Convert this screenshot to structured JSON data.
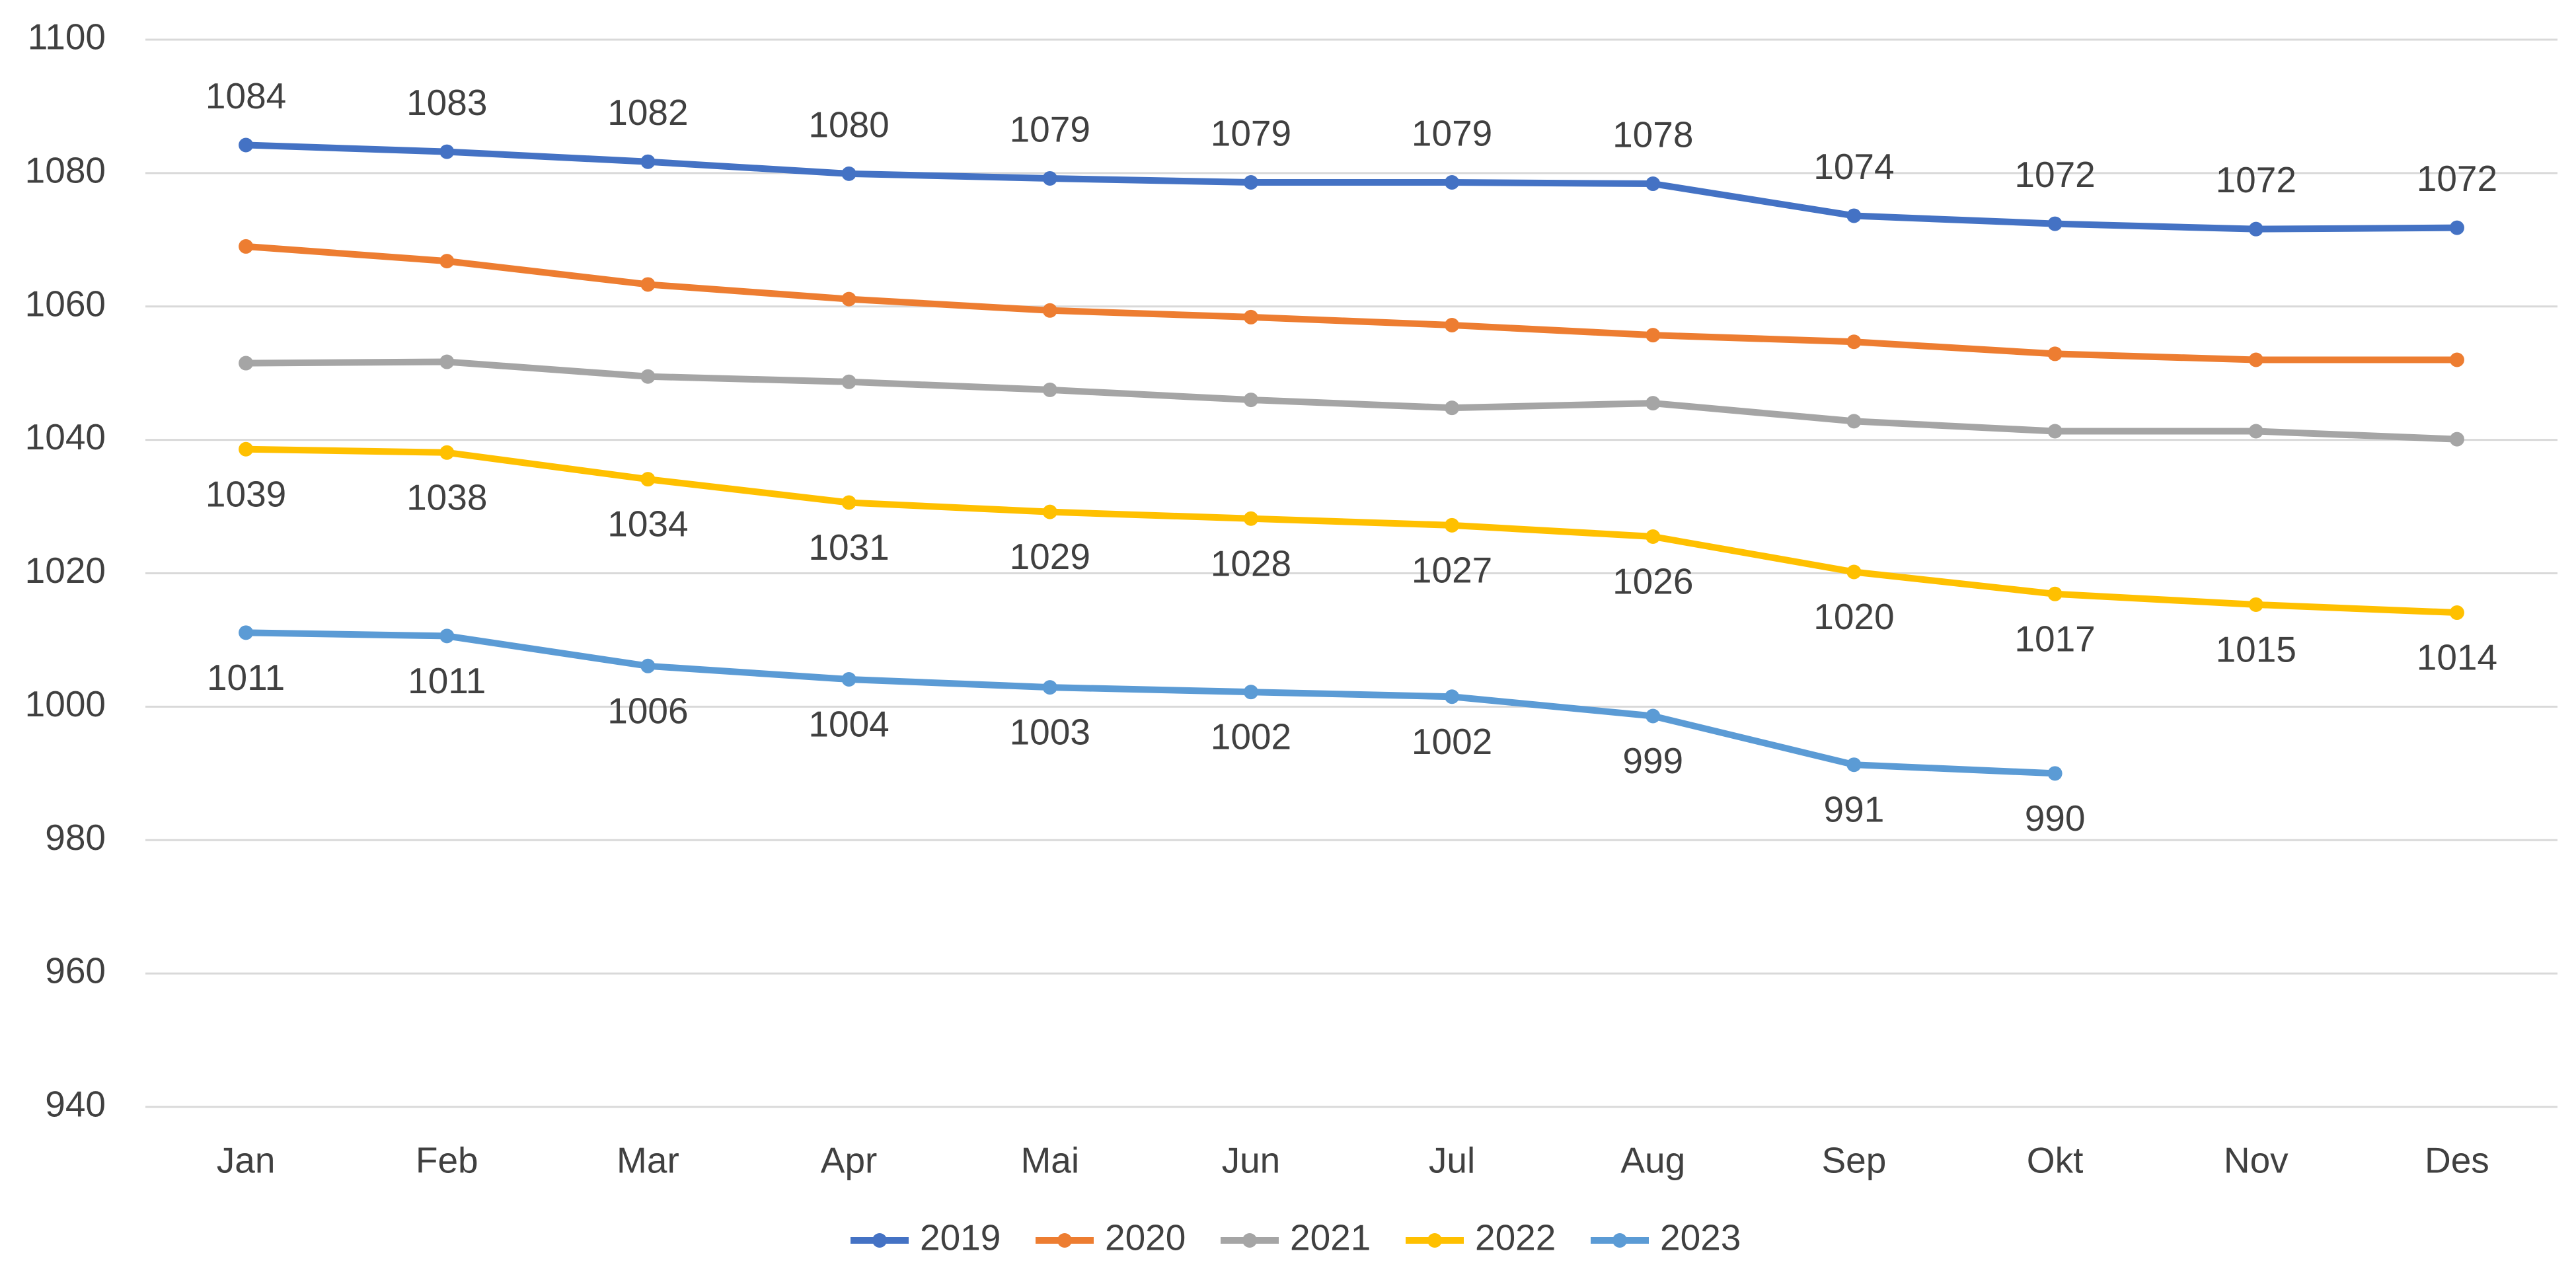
{
  "chart_data": {
    "type": "line",
    "categories": [
      "Jan",
      "Feb",
      "Mar",
      "Apr",
      "Mai",
      "Jun",
      "Jul",
      "Aug",
      "Sep",
      "Okt",
      "Nov",
      "Des"
    ],
    "ylim": [
      940,
      1100
    ],
    "yticks": [
      940,
      960,
      980,
      1000,
      1020,
      1040,
      1060,
      1080,
      1100
    ],
    "grid": true,
    "legend": "bottom",
    "series": [
      {
        "name": "2019",
        "color": "#4472c4",
        "label_position": "above",
        "values": [
          1084.2,
          1083.2,
          1081.7,
          1079.9,
          1079.2,
          1078.6,
          1078.6,
          1078.4,
          1073.6,
          1072.4,
          1071.6,
          1071.8
        ],
        "value_labels": [
          "1084",
          "1083",
          "1082",
          "1080",
          "1079",
          "1079",
          "1079",
          "1078",
          "1074",
          "1072",
          "1072",
          "1072"
        ]
      },
      {
        "name": "2020",
        "color": "#ed7d31",
        "values": [
          1069.0,
          1066.8,
          1063.3,
          1061.1,
          1059.4,
          1058.4,
          1057.2,
          1055.7,
          1054.7,
          1052.9,
          1052.0,
          1052.0
        ]
      },
      {
        "name": "2021",
        "color": "#a5a5a5",
        "values": [
          1051.5,
          1051.7,
          1049.5,
          1048.7,
          1047.5,
          1046.0,
          1044.8,
          1045.5,
          1042.8,
          1041.3,
          1041.3,
          1040.1
        ]
      },
      {
        "name": "2022",
        "color": "#ffc000",
        "label_position": "below",
        "values": [
          1038.6,
          1038.1,
          1034.1,
          1030.6,
          1029.2,
          1028.2,
          1027.2,
          1025.5,
          1020.2,
          1016.9,
          1015.3,
          1014.1
        ],
        "value_labels": [
          "1039",
          "1038",
          "1034",
          "1031",
          "1029",
          "1028",
          "1027",
          "1026",
          "1020",
          "1017",
          "1015",
          "1014"
        ]
      },
      {
        "name": "2023",
        "color": "#5b9bd5",
        "label_position": "below",
        "values": [
          1011.1,
          1010.6,
          1006.1,
          1004.1,
          1002.9,
          1002.2,
          1001.5,
          998.6,
          991.3,
          990.0,
          null,
          null
        ],
        "value_labels": [
          "1011",
          "1011",
          "1006",
          "1004",
          "1003",
          "1002",
          "1002",
          "999",
          "991",
          "990",
          null,
          null
        ]
      }
    ]
  }
}
